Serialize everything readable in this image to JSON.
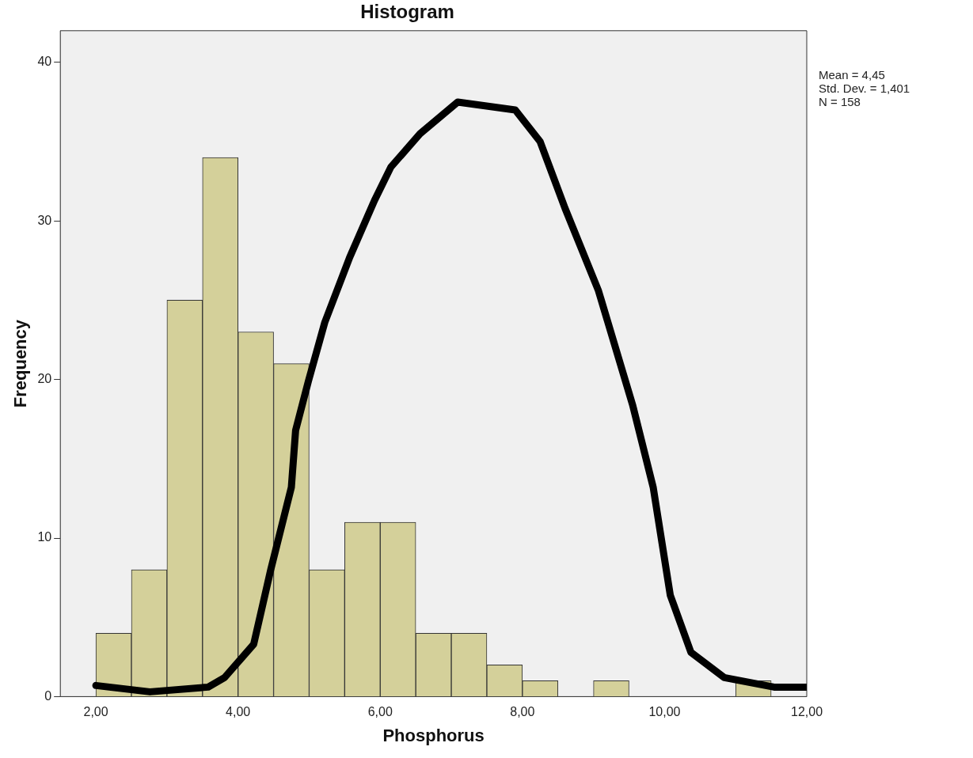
{
  "chart_data": {
    "type": "histogram",
    "title": "Histogram",
    "xlabel": "Phosphorus",
    "ylabel": "Frequency",
    "annotations": [
      "Mean = 4,45",
      "Std. Dev. = 1,401",
      "N = 158"
    ],
    "bins": [
      2,
      2.5,
      3,
      3.5,
      4,
      4.5,
      5,
      5.5,
      6,
      6.5,
      7,
      7.5,
      8,
      8.5,
      9,
      9.5,
      10,
      10.5,
      11,
      11.5
    ],
    "values": [
      4,
      8,
      25,
      34,
      23,
      21,
      8,
      11,
      11,
      4,
      4,
      2,
      1,
      0,
      1,
      0,
      0,
      0,
      1
    ],
    "color": "#d4d09a",
    "series": [
      {
        "type": "line",
        "color": "#000000",
        "x": [
          2,
          2.76,
          3.58,
          3.81,
          4.22,
          4.46,
          4.75,
          4.81,
          4.99,
          5.22,
          5.57,
          5.92,
          6.15,
          6.56,
          7.09,
          7.9,
          8.25,
          8.6,
          9.07,
          9.55,
          9.84,
          10.08,
          10.37,
          10.84,
          11.54,
          12
        ],
        "values": [
          0.7,
          0.3,
          0.6,
          1.2,
          3.3,
          8,
          13.2,
          16.8,
          19.9,
          23.6,
          27.7,
          31.3,
          33.4,
          35.5,
          37.5,
          37,
          35,
          30.8,
          25.6,
          18.4,
          13.2,
          6.4,
          2.8,
          1.2,
          0.6,
          0.6
        ]
      }
    ],
    "xlim": [
      1.5,
      12
    ],
    "xticks": [
      {
        "value": 2,
        "label": "2,00"
      },
      {
        "value": 4,
        "label": "4,00"
      },
      {
        "value": 6,
        "label": "6,00"
      },
      {
        "value": 8,
        "label": "8,00"
      },
      {
        "value": 10,
        "label": "10,00"
      },
      {
        "value": 12,
        "label": "12,00"
      }
    ],
    "ylim": [
      0,
      42
    ],
    "yticks": [
      0,
      10,
      20,
      30,
      40
    ],
    "grid": false,
    "legend": false
  }
}
